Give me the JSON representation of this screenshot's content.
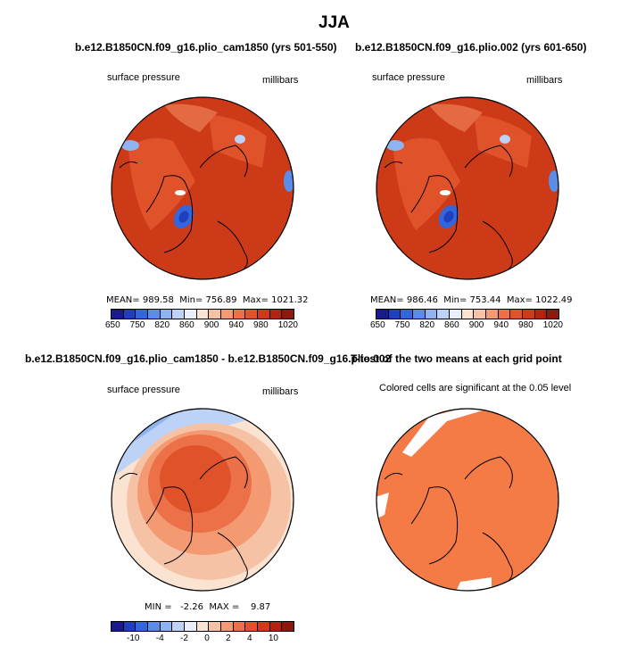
{
  "page": {
    "title": "JJA"
  },
  "panels": {
    "top_left": {
      "title": "b.e12.B1850CN.f09_g16.plio_cam1850 (yrs 501-550)",
      "variable": "surface pressure",
      "units": "millibars",
      "stats": {
        "mean_label": "MEAN=",
        "mean": "989.58",
        "min_label": "Min=",
        "min": "756.89",
        "max_label": "Max=",
        "max": "1021.32"
      }
    },
    "top_right": {
      "title": "b.e12.B1850CN.f09_g16.plio.002 (yrs 601-650)",
      "variable": "surface pressure",
      "units": "millibars",
      "stats": {
        "mean_label": "MEAN=",
        "mean": "986.46",
        "min_label": "Min=",
        "min": "753.44",
        "max_label": "Max=",
        "max": "1022.49"
      }
    },
    "bottom_left": {
      "title": "b.e12.B1850CN.f09_g16.plio_cam1850 - b.e12.B1850CN.f09_g16.plio.002",
      "variable": "surface pressure",
      "units": "millibars",
      "stats_text": "MIN =   -2.26  MAX =    9.87"
    },
    "bottom_right": {
      "title": "T-test of the two means at each grid point",
      "subtitle": "Colored cells are significant at the 0.05 level"
    }
  },
  "colorbars": {
    "absolute": {
      "colors": [
        "#1a1a8c",
        "#1f3fbf",
        "#3366dd",
        "#5b8de8",
        "#8fb2f0",
        "#bcd2f6",
        "#e8eefa",
        "#fbe3d2",
        "#f6c2a6",
        "#f39a72",
        "#ec7048",
        "#e0522a",
        "#cf3a18",
        "#b02410",
        "#8a1a0e"
      ],
      "ticks": [
        "650",
        "750",
        "820",
        "860",
        "900",
        "940",
        "980",
        "1020"
      ]
    },
    "difference": {
      "colors": [
        "#1a1a8c",
        "#1f3fbf",
        "#3366dd",
        "#5b8de8",
        "#8fb2f0",
        "#bcd2f6",
        "#e8eefa",
        "#fbe3d2",
        "#f6c2a6",
        "#f39a72",
        "#ec7048",
        "#e0522a",
        "#cf3a18",
        "#b02410",
        "#8a1a0e"
      ],
      "ticks": [
        "-10",
        "-4",
        "-2",
        "0",
        "2",
        "4",
        "10"
      ]
    }
  },
  "map_colors": {
    "ocean_pressure": "#cc3a18",
    "land_high": "#e0522a",
    "low_blue": "#3366dd",
    "diff_center": "#e0522a",
    "diff_mid": "#f39a72",
    "diff_outer": "#f6c2a6",
    "diff_blue": "#bcd2f6",
    "ttest_fill": "#f47a46"
  }
}
